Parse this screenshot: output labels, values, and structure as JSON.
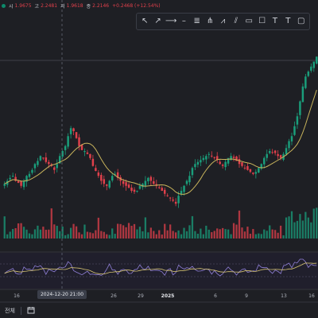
{
  "legend": {
    "open_label": "시",
    "open": "1.9675",
    "high_label": "고",
    "high": "2.2481",
    "low_label": "저",
    "low": "1.9618",
    "close_label": "종",
    "close": "2.2146",
    "change": "+0.2468 (+12.54%)"
  },
  "toolbar": {
    "tools": [
      {
        "name": "cursor-tool-icon",
        "glyph": "↖"
      },
      {
        "name": "trend-line-icon",
        "glyph": "↗"
      },
      {
        "name": "ray-icon",
        "glyph": "⟶"
      },
      {
        "name": "horizontal-line-icon",
        "glyph": "–"
      },
      {
        "name": "fibonacci-icon",
        "glyph": "≣"
      },
      {
        "name": "pitchfork-icon",
        "glyph": "⋔"
      },
      {
        "name": "zigzag-icon",
        "glyph": "⩘"
      },
      {
        "name": "channel-icon",
        "glyph": "⫽"
      },
      {
        "name": "rectangle-icon",
        "glyph": "▭"
      },
      {
        "name": "square-icon",
        "glyph": "☐"
      },
      {
        "name": "text-icon",
        "glyph": "T"
      },
      {
        "name": "text-box-icon",
        "glyph": "T"
      },
      {
        "name": "note-icon",
        "glyph": "▢"
      }
    ]
  },
  "xaxis": {
    "labels": [
      "16",
      "26",
      "29",
      "2025",
      "6",
      "9",
      "13",
      "16"
    ],
    "crosshair_label": "2024-12-20  21:00"
  },
  "bottom": {
    "range_label": "전체"
  },
  "colors": {
    "up": "#1a9e7b",
    "down": "#e0404b",
    "ma": "#c9b45c",
    "rsi": "#8f7fd6",
    "rsi_ma": "#d8c673",
    "bg": "#1e1f24"
  },
  "chart_data": [
    {
      "type": "line",
      "description_free": true,
      "series": [],
      "price": {
        "close": [
          1.52,
          1.55,
          1.58,
          1.6,
          1.55,
          1.53,
          1.5,
          1.55,
          1.6,
          1.62,
          1.66,
          1.72,
          1.75,
          1.8,
          1.78,
          1.74,
          1.72,
          1.7,
          1.66,
          1.72,
          1.8,
          1.85,
          1.9,
          2.0,
          2.08,
          2.05,
          1.98,
          1.9,
          1.86,
          1.85,
          1.82,
          1.78,
          1.7,
          1.65,
          1.6,
          1.55,
          1.52,
          1.5,
          1.55,
          1.6,
          1.62,
          1.58,
          1.55,
          1.52,
          1.5,
          1.48,
          1.45,
          1.44,
          1.45,
          1.5,
          1.52,
          1.55,
          1.58,
          1.55,
          1.52,
          1.5,
          1.48,
          1.45,
          1.42,
          1.4,
          1.38,
          1.35,
          1.32,
          1.4,
          1.45,
          1.5,
          1.55,
          1.6,
          1.68,
          1.72,
          1.74,
          1.76,
          1.78,
          1.8,
          1.82,
          1.8,
          1.78,
          1.76,
          1.72,
          1.7,
          1.74,
          1.78,
          1.8,
          1.78,
          1.75,
          1.72,
          1.7,
          1.68,
          1.66,
          1.64,
          1.62,
          1.64,
          1.68,
          1.72,
          1.78,
          1.82,
          1.85,
          1.84,
          1.83,
          1.8,
          1.78,
          1.82,
          1.88,
          1.95,
          2.0,
          2.1,
          2.2,
          2.35,
          2.5,
          2.6,
          2.65,
          2.7,
          2.75,
          2.8
        ]
      },
      "moving_average": "present",
      "volume": "present",
      "rsi_panel": "present"
    }
  ]
}
